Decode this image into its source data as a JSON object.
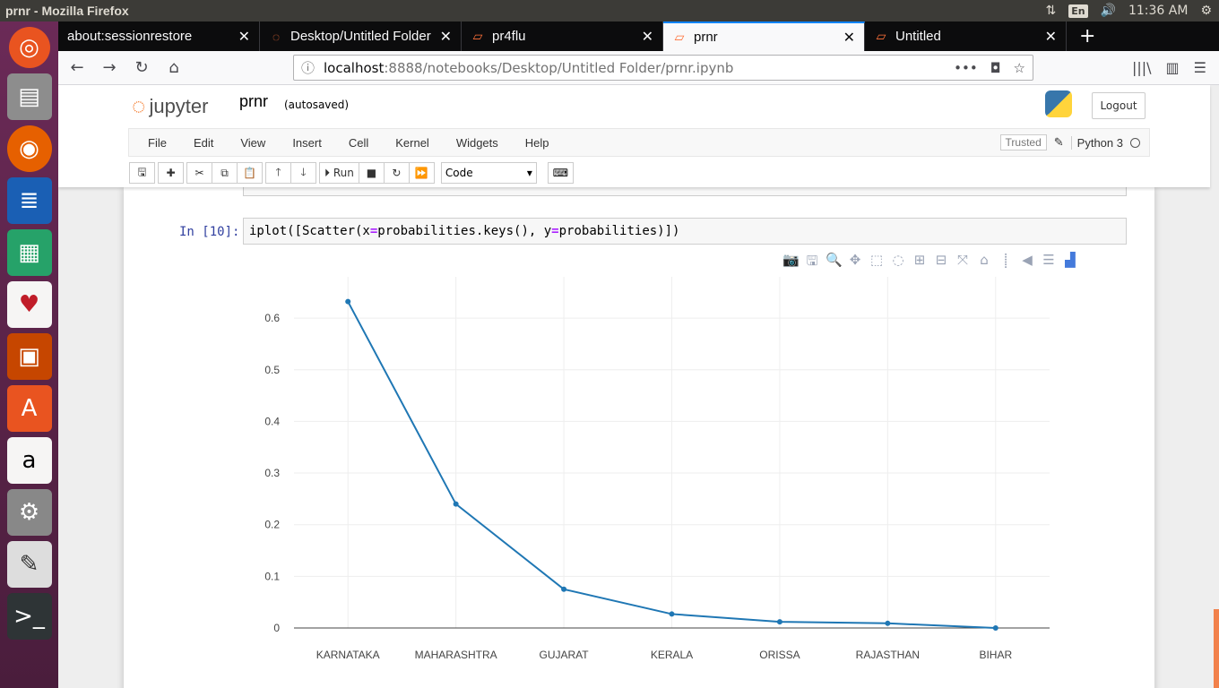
{
  "os": {
    "window_title": "prnr - Mozilla Firefox",
    "lang": "En",
    "time": "11:36 AM"
  },
  "browser": {
    "tabs": [
      {
        "label": "about:sessionrestore",
        "active": false
      },
      {
        "label": "Desktop/Untitled Folder",
        "active": false
      },
      {
        "label": "pr4flu",
        "active": false
      },
      {
        "label": "prnr",
        "active": true
      },
      {
        "label": "Untitled",
        "active": false
      }
    ],
    "url_host": "localhost",
    "url_rest": ":8888/notebooks/Desktop/Untitled Folder/prnr.ipynb"
  },
  "jupyter": {
    "logo_text": "jupyter",
    "notebook_name": "prnr",
    "autosave": "(autosaved)",
    "logout": "Logout",
    "menu": [
      "File",
      "Edit",
      "View",
      "Insert",
      "Cell",
      "Kernel",
      "Widgets",
      "Help"
    ],
    "trusted": "Trusted",
    "kernel": "Python 3",
    "run_label": "Run",
    "cell_type": "Code",
    "cell": {
      "prompt": "In [10]:",
      "code_a": "iplot([Scatter(x",
      "code_eq1": "=",
      "code_b": "probabilities.keys(), y",
      "code_eq2": "=",
      "code_c": "probabilities)])"
    }
  },
  "chart_data": {
    "type": "line",
    "x": [
      "KARNATAKA",
      "MAHARASHTRA",
      "GUJARAT",
      "KERALA",
      "ORISSA",
      "RAJASTHAN",
      "BIHAR"
    ],
    "y": [
      0.632,
      0.24,
      0.075,
      0.027,
      0.012,
      0.009,
      0.0
    ],
    "yticks": [
      0,
      0.1,
      0.2,
      0.3,
      0.4,
      0.5,
      0.6
    ],
    "ylim": [
      0,
      0.68
    ],
    "grid": true,
    "line_color": "#1f77b4"
  }
}
